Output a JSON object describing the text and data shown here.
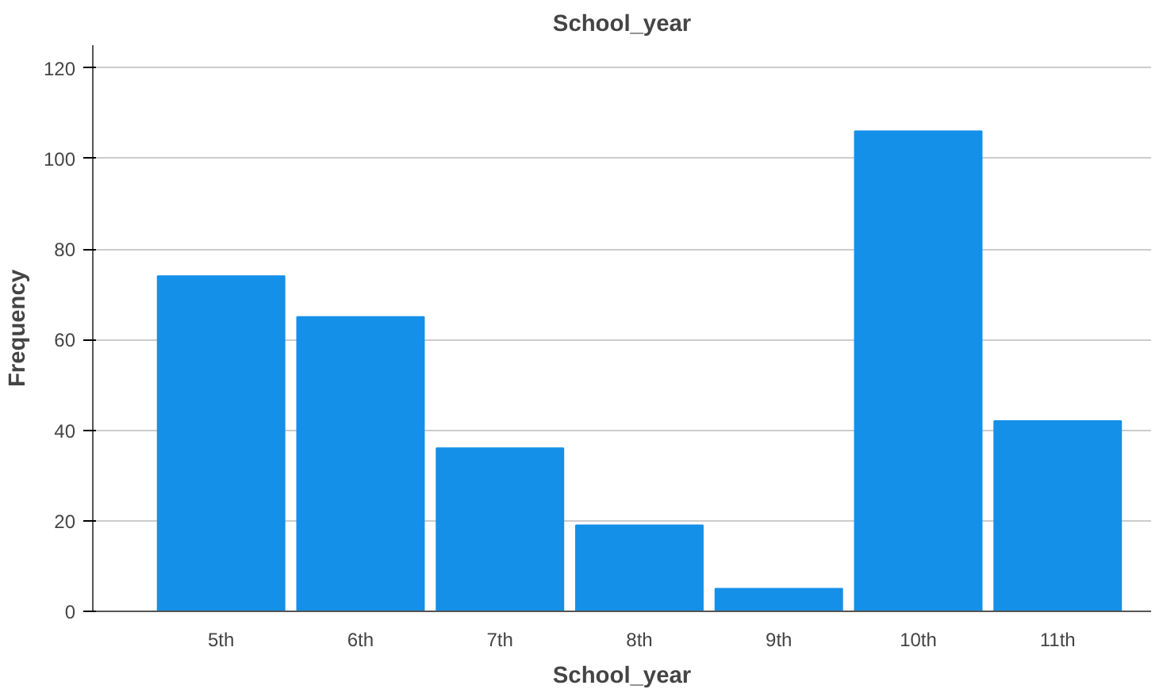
{
  "chart_data": {
    "type": "bar",
    "title": "School_year",
    "xlabel": "School_year",
    "ylabel": "Frequency",
    "categories": [
      "5th",
      "6th",
      "7th",
      "8th",
      "9th",
      "10th",
      "11th"
    ],
    "values": [
      74,
      65,
      36,
      19,
      5,
      106,
      42
    ],
    "color": "#1590e8",
    "ylim": [
      0,
      125
    ],
    "yticks": [
      0,
      20,
      40,
      60,
      80,
      100,
      120
    ],
    "grid": "y"
  }
}
